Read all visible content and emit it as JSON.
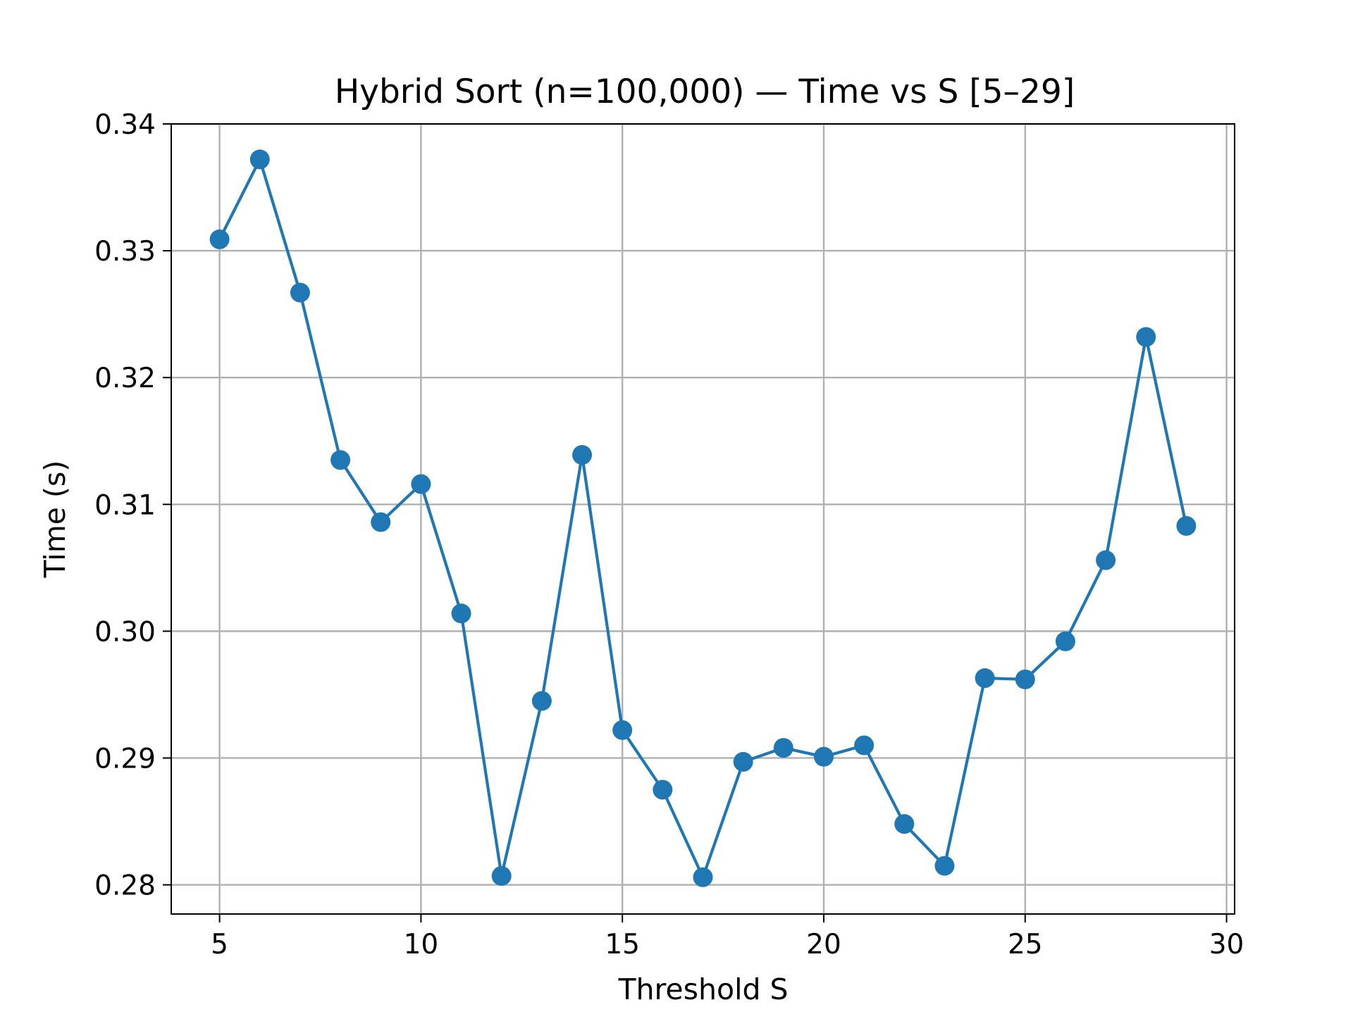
{
  "chart_data": {
    "type": "line",
    "title": "Hybrid Sort (n=100,000) — Time vs S [5–29]",
    "xlabel": "Threshold S",
    "ylabel": "Time (s)",
    "xlim": [
      3.8,
      30.2
    ],
    "ylim": [
      0.2777,
      0.34
    ],
    "xticks": [
      5,
      10,
      15,
      20,
      25,
      30
    ],
    "xtick_labels": [
      "5",
      "10",
      "15",
      "20",
      "25",
      "30"
    ],
    "yticks": [
      0.28,
      0.29,
      0.3,
      0.31,
      0.32,
      0.33,
      0.34
    ],
    "ytick_labels": [
      "0.28",
      "0.29",
      "0.30",
      "0.31",
      "0.32",
      "0.33",
      "0.34"
    ],
    "grid": true,
    "marker": "circle",
    "color": "#1f77b4",
    "series": [
      {
        "name": "Time",
        "x": [
          5,
          6,
          7,
          8,
          9,
          10,
          11,
          12,
          13,
          14,
          15,
          16,
          17,
          18,
          19,
          20,
          21,
          22,
          23,
          24,
          25,
          26,
          27,
          28,
          29
        ],
        "values": [
          0.3309,
          0.3372,
          0.3267,
          0.3135,
          0.3086,
          0.3116,
          0.3014,
          0.2807,
          0.2945,
          0.3139,
          0.2922,
          0.2875,
          0.2806,
          0.2897,
          0.2908,
          0.2901,
          0.291,
          0.2848,
          0.2815,
          0.2963,
          0.2962,
          0.2992,
          0.3056,
          0.3232,
          0.3083
        ]
      }
    ]
  }
}
